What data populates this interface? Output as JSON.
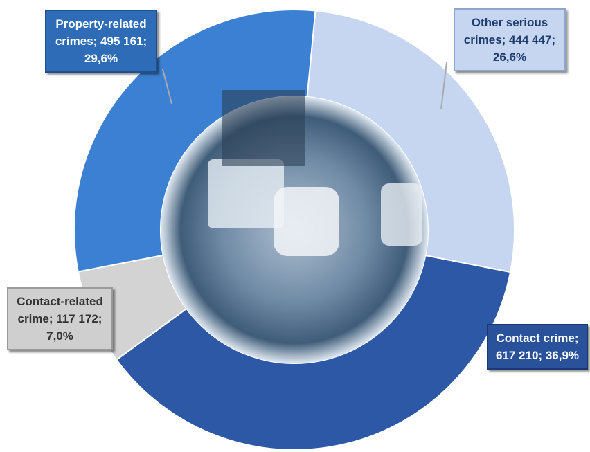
{
  "chart_data": {
    "type": "donut",
    "categories": [
      "Other serious crimes",
      "Contact crime",
      "Contact-related crime",
      "Property-related crimes"
    ],
    "values": [
      444447,
      617210,
      117172,
      495161
    ],
    "value_labels": [
      "444 447",
      "617 210",
      "117 172",
      "495 161"
    ],
    "percent_labels": [
      "26,6%",
      "36,9%",
      "7,0%",
      "29,6%"
    ],
    "separator": "; ",
    "colors": [
      "#c6d6f0",
      "#2c58a6",
      "#d3d3d3",
      "#3b80d2"
    ]
  }
}
